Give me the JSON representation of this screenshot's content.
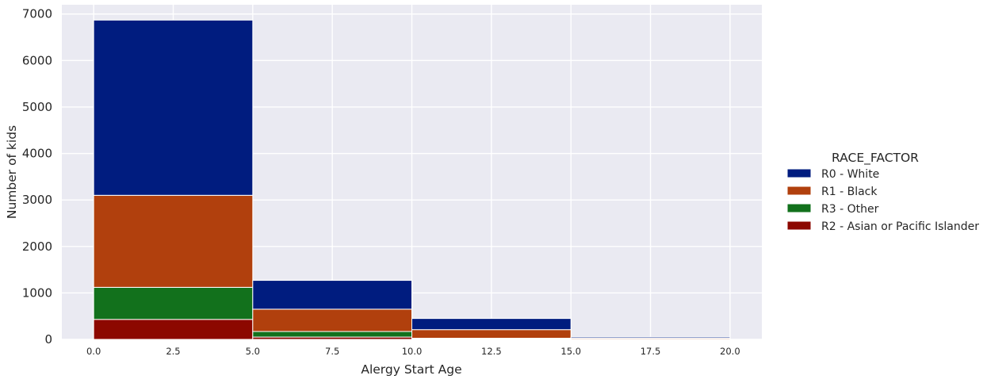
{
  "chart_data": {
    "type": "bar",
    "subtype": "stacked-histogram",
    "xlabel": "Alergy Start Age",
    "ylabel": "Number of kids",
    "xlim": [
      -1.0,
      21.0
    ],
    "ylim": [
      0,
      7200
    ],
    "xticks": [
      0.0,
      2.5,
      5.0,
      7.5,
      10.0,
      12.5,
      15.0,
      17.5,
      20.0
    ],
    "xtick_labels": [
      "0.0",
      "2.5",
      "5.0",
      "7.5",
      "10.0",
      "12.5",
      "15.0",
      "17.5",
      "20.0"
    ],
    "yticks": [
      0,
      1000,
      2000,
      3000,
      4000,
      5000,
      6000,
      7000
    ],
    "ytick_labels": [
      "0",
      "1000",
      "2000",
      "3000",
      "4000",
      "5000",
      "6000",
      "7000"
    ],
    "bins": [
      [
        0,
        5
      ],
      [
        5,
        10
      ],
      [
        10,
        15
      ],
      [
        15,
        20
      ]
    ],
    "grid": true,
    "legend": {
      "title": "RACE_FACTOR",
      "position": "right",
      "entries": [
        "R0 - White",
        "R1 - Black",
        "R3 - Other",
        "R2 - Asian or Pacific Islander"
      ]
    },
    "series": [
      {
        "name": "R2 - Asian or Pacific Islander",
        "color": "#8c0800",
        "values": [
          430,
          50,
          10,
          2
        ]
      },
      {
        "name": "R3 - Other",
        "color": "#12711c",
        "values": [
          690,
          120,
          15,
          3
        ]
      },
      {
        "name": "R1 - Black",
        "color": "#b1400d",
        "values": [
          1980,
          480,
          185,
          20
        ]
      },
      {
        "name": "R0 - White",
        "color": "#001c7f",
        "values": [
          3770,
          620,
          240,
          25
        ]
      }
    ]
  }
}
